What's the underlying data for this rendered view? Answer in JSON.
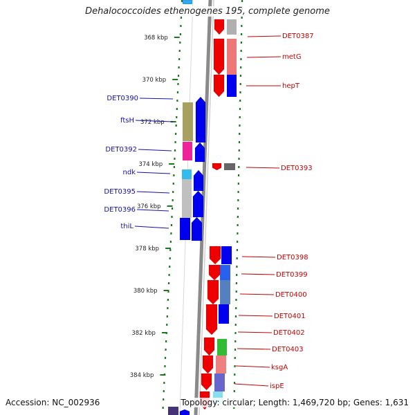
{
  "title": "Dehalococcoides ethenogenes 195, complete genome",
  "footer": {
    "accession": "Accession: NC_002936",
    "topology": "Topology: circular; Length: 1,469,720 bp; Genes: 1,631"
  },
  "kbp_ticks": [
    "368 kbp",
    "370 kbp",
    "372 kbp",
    "374 kbp",
    "376 kbp",
    "378 kbp",
    "380 kbp",
    "382 kbp",
    "384 kbp"
  ],
  "labels_left": [
    "DET0390",
    "ftsH",
    "DET0392",
    "ndk",
    "DET0395",
    "DET0396",
    "thiL"
  ],
  "labels_right": [
    "DET0387",
    "metG",
    "hepT",
    "DET0393",
    "DET0398",
    "DET0399",
    "DET0400",
    "DET0401",
    "DET0402",
    "DET0403",
    "ksgA",
    "ispE"
  ],
  "colors": {
    "forward_strand": "#0000ee",
    "reverse_strand": "#ee0000",
    "backbone": "#8a8a8a",
    "tick_mark": "#1a7a1a",
    "left_label": "#1010b0",
    "right_label": "#c40000"
  }
}
